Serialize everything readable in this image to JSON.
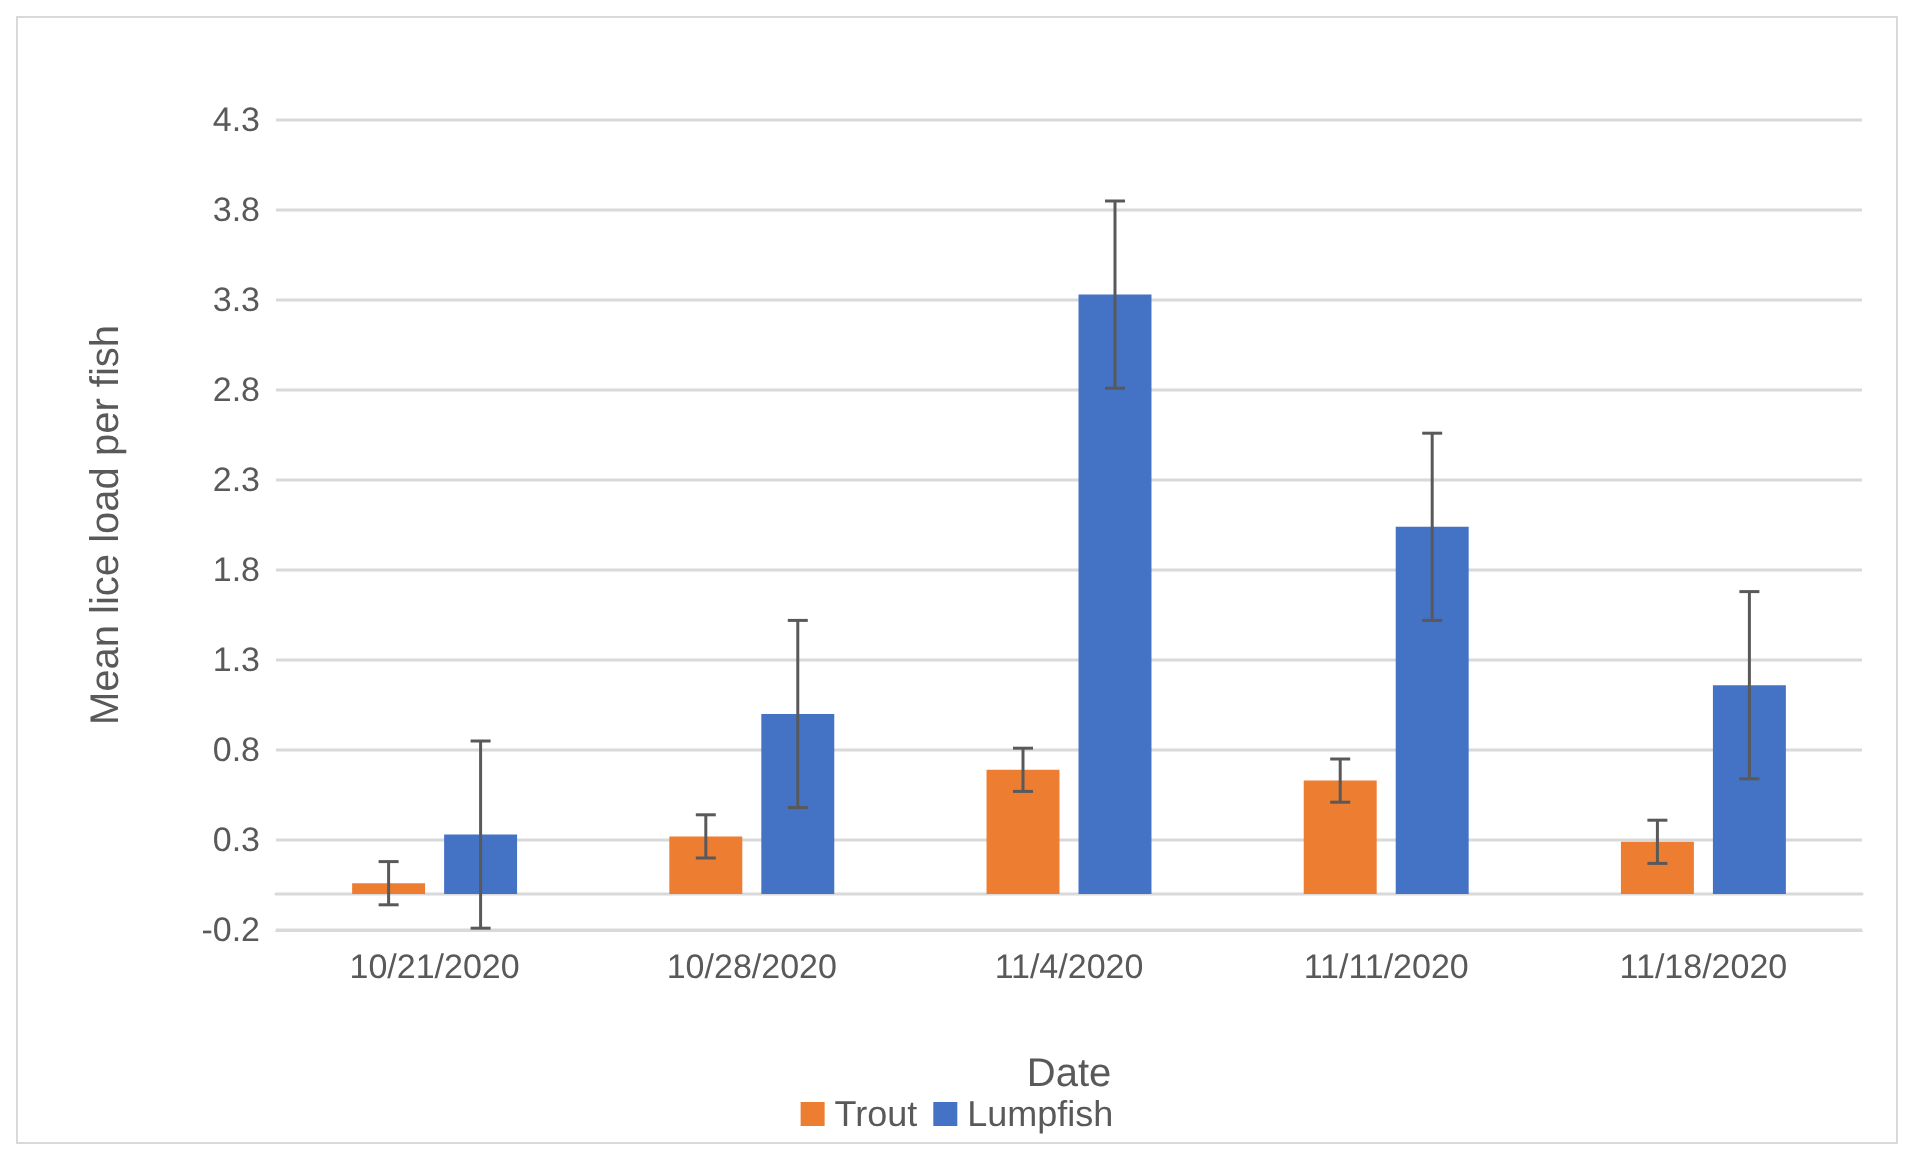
{
  "chart_data": {
    "type": "bar",
    "xlabel": "Date",
    "ylabel": "Mean lice load per fish",
    "categories": [
      "10/21/2020",
      "10/28/2020",
      "11/4/2020",
      "11/11/2020",
      "11/18/2020"
    ],
    "series": [
      {
        "name": "Trout",
        "color": "#ed7d31",
        "values": [
          0.06,
          0.32,
          0.69,
          0.63,
          0.29
        ],
        "errors": [
          0.12,
          0.12,
          0.12,
          0.12,
          0.12
        ]
      },
      {
        "name": "Lumpfish",
        "color": "#4472c4",
        "values": [
          0.33,
          1.0,
          3.33,
          2.04,
          1.16
        ],
        "errors": [
          0.52,
          0.52,
          0.52,
          0.52,
          0.52
        ]
      }
    ],
    "ylim": [
      -0.2,
      4.3
    ],
    "yticks": [
      -0.2,
      0.3,
      0.8,
      1.3,
      1.8,
      2.3,
      2.8,
      3.3,
      3.8,
      4.3
    ],
    "grid": "y",
    "legend": "bottom"
  }
}
